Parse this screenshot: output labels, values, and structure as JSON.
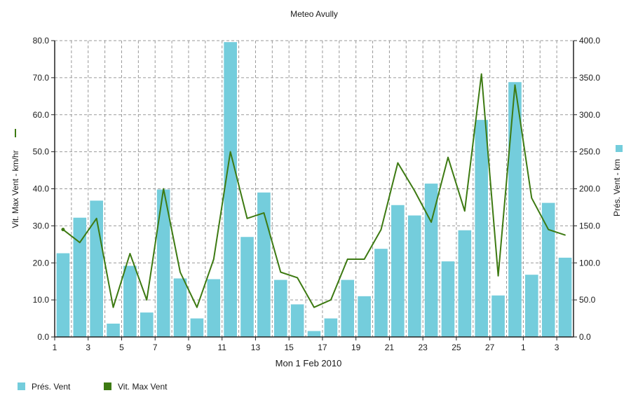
{
  "chart_data": {
    "type": "bar+line",
    "title": "Meteo  Avully",
    "xlabel": "Mon 1 Feb 2010",
    "x_tick_labels": [
      "1",
      "3",
      "5",
      "7",
      "9",
      "11",
      "13",
      "15",
      "17",
      "19",
      "21",
      "23",
      "25",
      "27",
      "1",
      "3"
    ],
    "y_left_label": "Vit. Max Vent - km/hr",
    "y_left_ticks": [
      "0.0",
      "10.0",
      "20.0",
      "30.0",
      "40.0",
      "50.0",
      "60.0",
      "70.0",
      "80.0"
    ],
    "y_left_lim": [
      0,
      80
    ],
    "y_right_label": "Prés. Vent - km",
    "y_right_ticks": [
      "0.0",
      "50.0",
      "100.0",
      "150.0",
      "200.0",
      "250.0",
      "300.0",
      "350.0",
      "400.0"
    ],
    "y_right_lim": [
      0,
      400
    ],
    "grid": true,
    "legend_position": "bottom-left",
    "colors": {
      "bars": "#74cddc",
      "line": "#3d7a12",
      "grid": "#9a9a9a"
    },
    "series": [
      {
        "name": "Prés. Vent",
        "type": "bar",
        "axis": "right",
        "values": [
          113,
          161,
          184,
          18,
          96,
          33,
          199,
          79,
          25,
          78,
          398,
          135,
          195,
          77,
          44,
          8,
          25,
          77,
          55,
          119,
          178,
          164,
          207,
          102,
          144,
          293,
          56,
          344,
          84,
          181,
          107
        ]
      },
      {
        "name": "Vit. Max Vent",
        "type": "line",
        "axis": "left",
        "values": [
          29,
          25.5,
          32,
          8,
          22.5,
          10,
          40,
          17.5,
          8,
          21,
          50,
          32,
          33.5,
          17.5,
          16,
          8,
          10,
          21,
          21,
          29,
          47,
          39.5,
          31,
          48.5,
          34,
          71,
          16.5,
          68,
          37.5,
          29,
          27.5
        ]
      }
    ]
  }
}
